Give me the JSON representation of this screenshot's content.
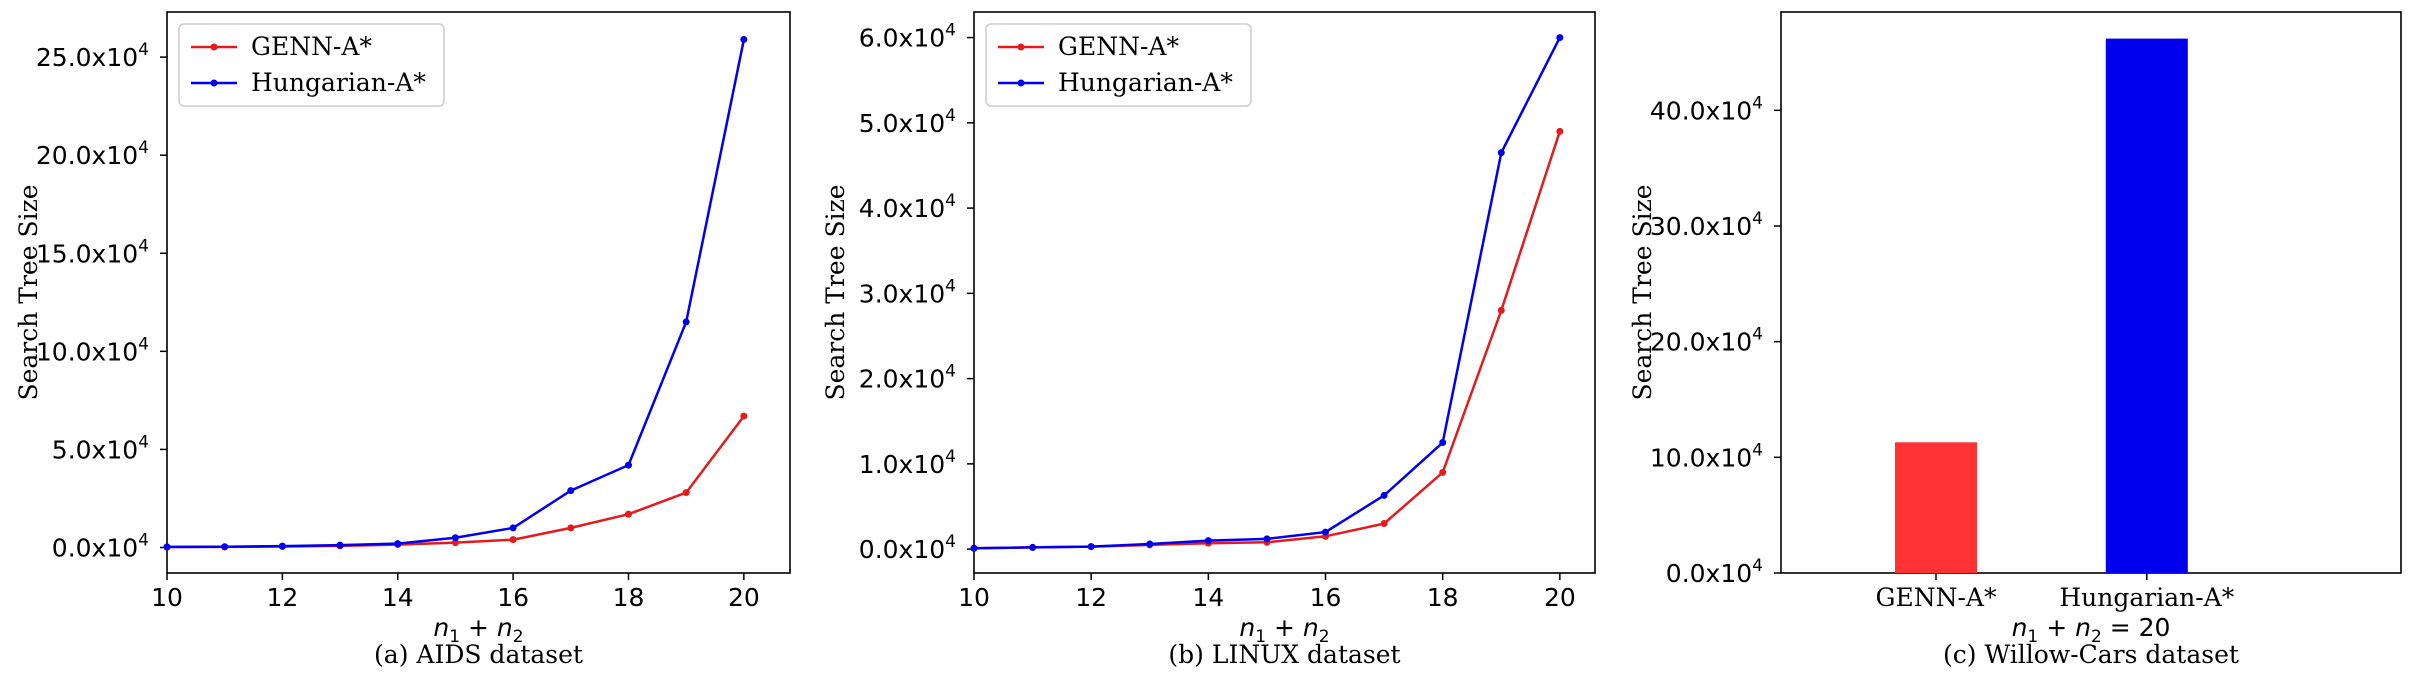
{
  "chart_data": [
    {
      "type": "line",
      "caption": "(a) AIDS dataset",
      "xlabel": "n_1 + n_2",
      "ylabel": "Search Tree Size",
      "tick_format": "x10^4",
      "x": [
        10,
        11,
        12,
        13,
        14,
        15,
        16,
        17,
        18,
        19,
        20
      ],
      "xlim": [
        10,
        20.8
      ],
      "ylim": [
        -1.3,
        27.3
      ],
      "xticks": [
        10,
        12,
        14,
        16,
        18,
        20
      ],
      "yticks": [
        0,
        5,
        10,
        15,
        20,
        25
      ],
      "ytick_labels": [
        "0.0x10",
        "5.0x10",
        "10.0x10",
        "15.0x10",
        "20.0x10",
        "25.0x10"
      ],
      "legend_position": "top-left",
      "grid": false,
      "series": [
        {
          "name": "GENN-A*",
          "color": "#e41a1c",
          "values": [
            0.02,
            0.03,
            0.05,
            0.08,
            0.15,
            0.25,
            0.4,
            1.0,
            1.7,
            2.8,
            6.7
          ]
        },
        {
          "name": "Hungarian-A*",
          "color": "#0000ee",
          "values": [
            0.03,
            0.04,
            0.07,
            0.12,
            0.2,
            0.5,
            1.0,
            2.9,
            4.2,
            11.5,
            25.9
          ]
        }
      ]
    },
    {
      "type": "line",
      "caption": "(b) LINUX dataset",
      "xlabel": "n_1 + n_2",
      "ylabel": "Search Tree Size",
      "tick_format": "x10^4",
      "x": [
        10,
        11,
        12,
        13,
        14,
        15,
        16,
        17,
        18,
        19,
        20
      ],
      "xlim": [
        10,
        20.6
      ],
      "ylim": [
        -0.28,
        6.3
      ],
      "xticks": [
        10,
        12,
        14,
        16,
        18,
        20
      ],
      "yticks": [
        0,
        1,
        2,
        3,
        4,
        5,
        6
      ],
      "ytick_labels": [
        "0.0x10",
        "1.0x10",
        "2.0x10",
        "3.0x10",
        "4.0x10",
        "5.0x10",
        "6.0x10"
      ],
      "legend_position": "top-left",
      "grid": false,
      "series": [
        {
          "name": "GENN-A*",
          "color": "#e41a1c",
          "values": [
            0.01,
            0.02,
            0.03,
            0.05,
            0.07,
            0.08,
            0.15,
            0.3,
            0.9,
            2.8,
            4.9
          ]
        },
        {
          "name": "Hungarian-A*",
          "color": "#0000ee",
          "values": [
            0.01,
            0.02,
            0.03,
            0.06,
            0.1,
            0.12,
            0.2,
            0.63,
            1.25,
            4.65,
            6.0
          ]
        }
      ]
    },
    {
      "type": "bar",
      "caption": "(c) Willow-Cars dataset",
      "xlabel": "n_1 + n_2 = 20",
      "ylabel": "Search Tree Size",
      "tick_format": "x10^4",
      "categories": [
        "GENN-A*",
        "Hungarian-A*"
      ],
      "values": [
        11.3,
        46.2
      ],
      "colors": [
        "#ff3333",
        "#0000ee"
      ],
      "ylim": [
        0,
        48.5
      ],
      "yticks": [
        0,
        10,
        20,
        30,
        40
      ],
      "ytick_labels": [
        "0.0x10",
        "10.0x10",
        "20.0x10",
        "30.0x10",
        "40.0x10"
      ],
      "grid": false
    }
  ]
}
